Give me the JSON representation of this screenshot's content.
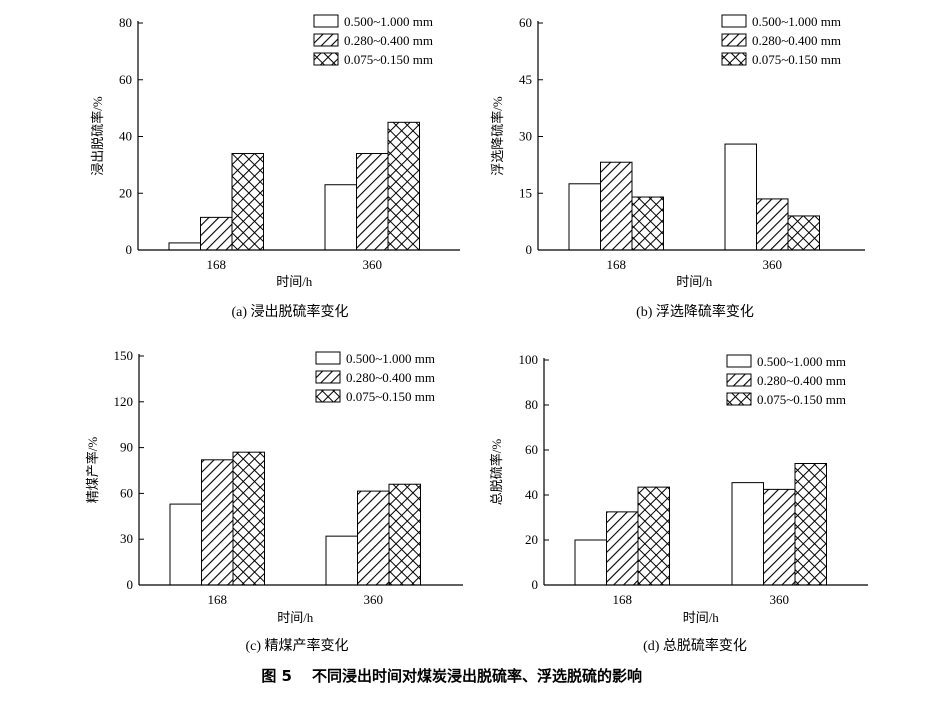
{
  "figure_caption": {
    "number": "图 5",
    "text": "不同浸出时间对煤炭浸出脱硫率、浮选脱硫的影响"
  },
  "legend_entries": [
    "0.500~1.000 mm",
    "0.280~0.400 mm",
    "0.075~0.150 mm"
  ],
  "chart_data": [
    {
      "type": "bar",
      "caption": "(a) 浸出脱硫率变化",
      "xlabel": "时间/h",
      "ylabel": "浸出脱硫率/%",
      "categories": [
        "168",
        "360"
      ],
      "ylim": [
        0,
        80
      ],
      "yticks": [
        0,
        20,
        40,
        60,
        80
      ],
      "legend": "top-right",
      "grid": false,
      "series": [
        {
          "name": "0.500~1.000 mm",
          "pattern": "empty",
          "values": [
            2.5,
            23
          ]
        },
        {
          "name": "0.280~0.400 mm",
          "pattern": "diagonal",
          "values": [
            11.5,
            34
          ]
        },
        {
          "name": "0.075~0.150 mm",
          "pattern": "crosshatch",
          "values": [
            34,
            45
          ]
        }
      ]
    },
    {
      "type": "bar",
      "caption": "(b) 浮选降硫率变化",
      "xlabel": "时间/h",
      "ylabel": "浮选降硫率/%",
      "categories": [
        "168",
        "360"
      ],
      "ylim": [
        0,
        60
      ],
      "yticks": [
        0,
        15,
        30,
        45,
        60
      ],
      "legend": "top-right",
      "grid": false,
      "series": [
        {
          "name": "0.500~1.000 mm",
          "pattern": "empty",
          "values": [
            17.5,
            28
          ]
        },
        {
          "name": "0.280~0.400 mm",
          "pattern": "diagonal",
          "values": [
            23.2,
            13.5
          ]
        },
        {
          "name": "0.075~0.150 mm",
          "pattern": "crosshatch",
          "values": [
            14,
            9
          ]
        }
      ]
    },
    {
      "type": "bar",
      "caption": "(c) 精煤产率变化",
      "xlabel": "时间/h",
      "ylabel": "精煤产率/%",
      "categories": [
        "168",
        "360"
      ],
      "ylim": [
        0,
        150
      ],
      "yticks": [
        0,
        30,
        60,
        90,
        120,
        150
      ],
      "legend": "top-right",
      "grid": false,
      "series": [
        {
          "name": "0.500~1.000 mm",
          "pattern": "empty",
          "values": [
            53,
            32
          ]
        },
        {
          "name": "0.280~0.400 mm",
          "pattern": "diagonal",
          "values": [
            82,
            61.5
          ]
        },
        {
          "name": "0.075~0.150 mm",
          "pattern": "crosshatch",
          "values": [
            87,
            66
          ]
        }
      ]
    },
    {
      "type": "bar",
      "caption": "(d) 总脱硫率变化",
      "xlabel": "时间/h",
      "ylabel": "总脱硫率/%",
      "categories": [
        "168",
        "360"
      ],
      "ylim": [
        0,
        100
      ],
      "yticks": [
        0,
        20,
        40,
        60,
        80,
        100
      ],
      "legend": "top-right",
      "grid": false,
      "series": [
        {
          "name": "0.500~1.000 mm",
          "pattern": "empty",
          "values": [
            20,
            45.5
          ]
        },
        {
          "name": "0.280~0.400 mm",
          "pattern": "diagonal",
          "values": [
            32.5,
            42.5
          ]
        },
        {
          "name": "0.075~0.150 mm",
          "pattern": "crosshatch",
          "values": [
            43.5,
            54
          ]
        }
      ]
    }
  ]
}
